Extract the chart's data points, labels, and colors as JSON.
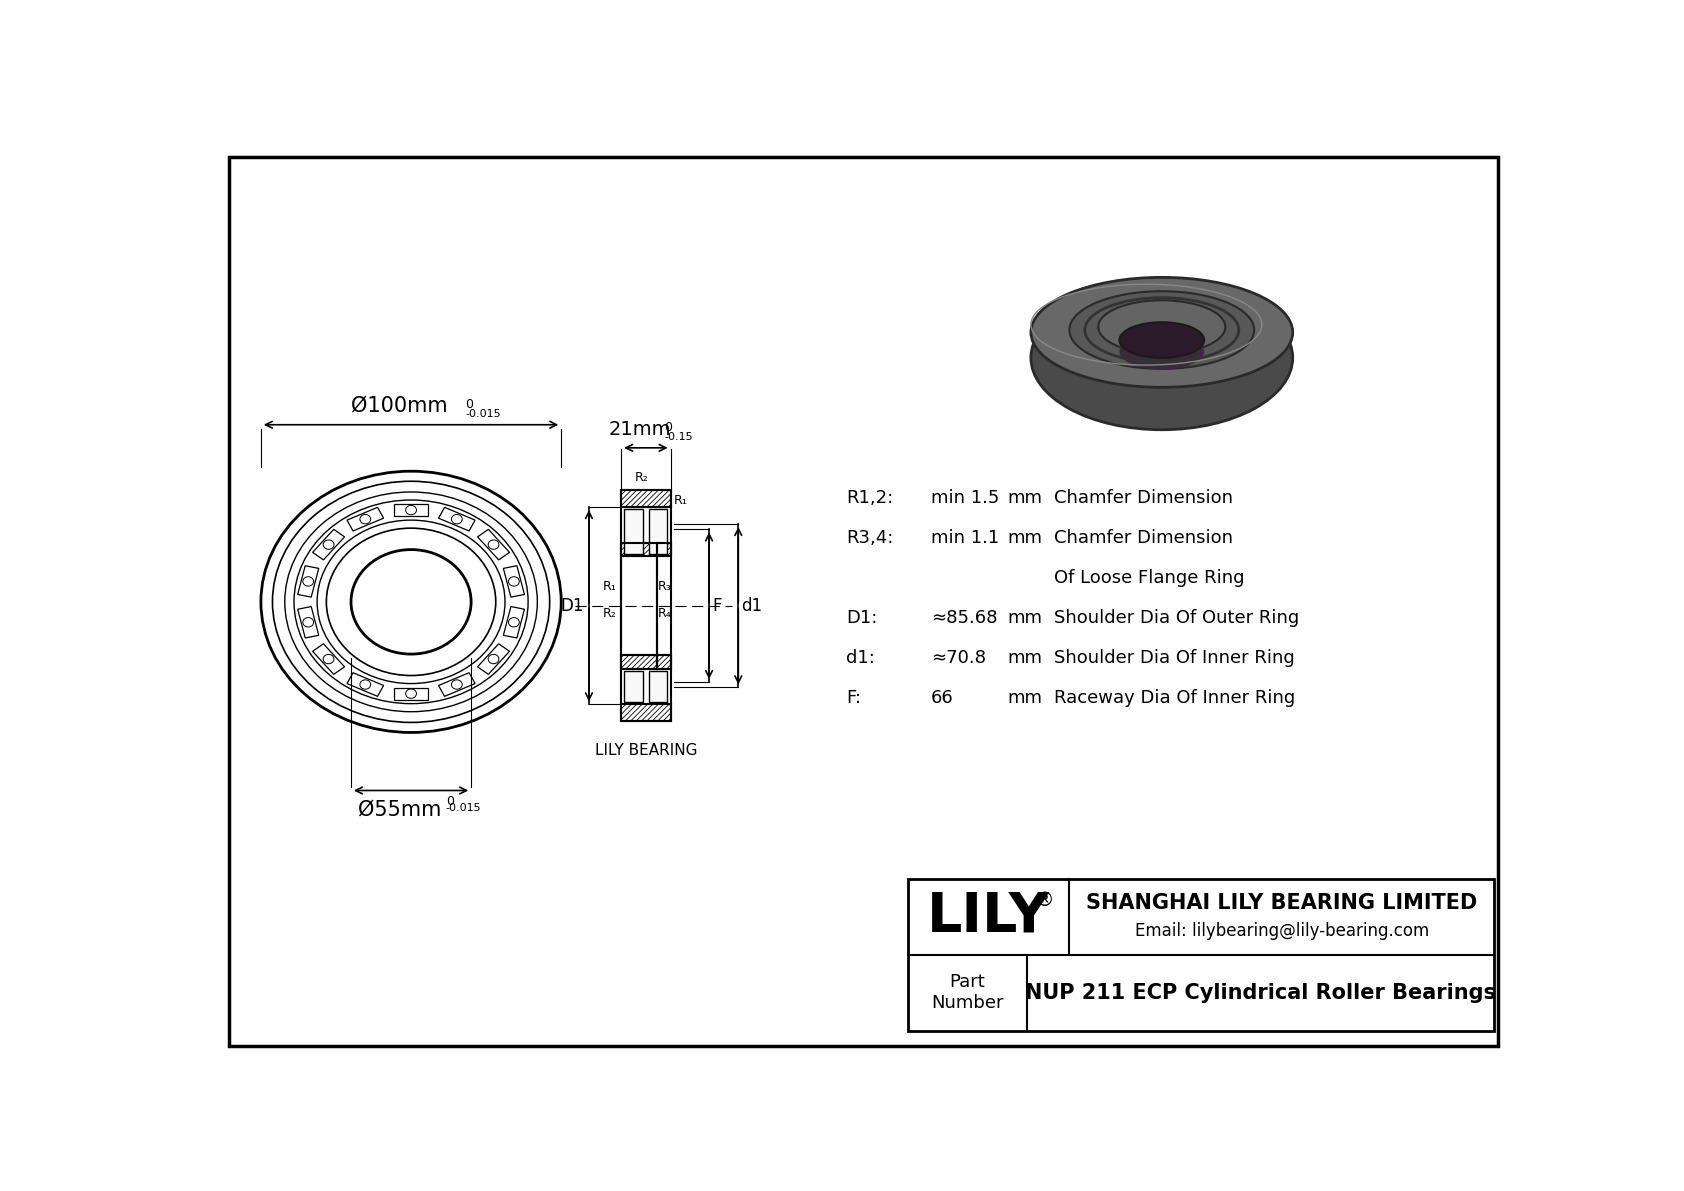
{
  "bg_color": "#ffffff",
  "line_color": "#000000",
  "outer_diameter_label": "Ø100mm",
  "inner_diameter_label": "Ø55mm",
  "width_label": "21mm",
  "params": [
    {
      "label": "R1,2:",
      "value": "min 1.5",
      "unit": "mm",
      "desc": "Chamfer Dimension"
    },
    {
      "label": "R3,4:",
      "value": "min 1.1",
      "unit": "mm",
      "desc": "Chamfer Dimension"
    },
    {
      "label": "",
      "value": "",
      "unit": "",
      "desc": "Of Loose Flange Ring"
    },
    {
      "label": "D1:",
      "value": "≈85.68",
      "unit": "mm",
      "desc": "Shoulder Dia Of Outer Ring"
    },
    {
      "label": "d1:",
      "value": "≈70.8",
      "unit": "mm",
      "desc": "Shoulder Dia Of Inner Ring"
    },
    {
      "label": "F:",
      "value": "66",
      "unit": "mm",
      "desc": "Raceway Dia Of Inner Ring"
    }
  ],
  "company": "SHANGHAI LILY BEARING LIMITED",
  "email": "Email: lilybearing@lily-bearing.com",
  "part_label": "Part\nNumber",
  "part_number": "NUP 211 ECP Cylindrical Roller Bearings",
  "lily_label": "LILY",
  "lily_bearing_label": "LILY BEARING",
  "r_labels_top": [
    "R₂",
    "R₁"
  ],
  "r_labels_left": [
    "R₁",
    "R₂"
  ],
  "r_labels_right": [
    "R₃",
    "R₄"
  ]
}
